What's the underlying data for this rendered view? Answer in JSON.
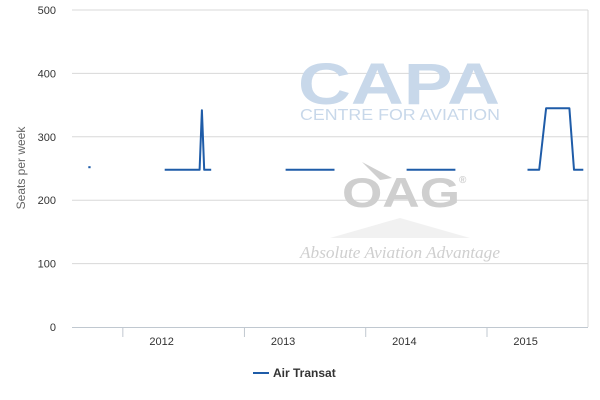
{
  "chart_data": {
    "type": "line",
    "title": "",
    "xlabel": "",
    "ylabel": "Seats per week",
    "ylim": [
      0,
      500
    ],
    "yticks": [
      0,
      100,
      200,
      300,
      400,
      500
    ],
    "xlim": [
      "2011-08-01",
      "2015-11-01"
    ],
    "xticks": [
      {
        "label": "2012",
        "date": "2012-01-01"
      },
      {
        "label": "2013",
        "date": "2013-01-01"
      },
      {
        "label": "2014",
        "date": "2014-01-01"
      },
      {
        "label": "2015",
        "date": "2015-01-01"
      }
    ],
    "grid": true,
    "legend_position": "bottom-center",
    "series": [
      {
        "name": "Air Transat",
        "color": "#1f5ca8",
        "segments": [
          [
            [
              "2011-09-19",
              252
            ],
            [
              "2011-09-26",
              252
            ]
          ],
          [
            [
              "2012-05-06",
              248
            ],
            [
              "2012-08-19",
              248
            ],
            [
              "2012-08-26",
              342
            ],
            [
              "2012-09-02",
              248
            ],
            [
              "2012-09-23",
              248
            ]
          ],
          [
            [
              "2013-05-05",
              248
            ],
            [
              "2013-09-29",
              248
            ]
          ],
          [
            [
              "2014-05-04",
              248
            ],
            [
              "2014-09-28",
              248
            ]
          ],
          [
            [
              "2015-05-03",
              248
            ],
            [
              "2015-06-07",
              248
            ],
            [
              "2015-06-28",
              345
            ],
            [
              "2015-07-05",
              345
            ],
            [
              "2015-09-06",
              345
            ],
            [
              "2015-09-20",
              248
            ],
            [
              "2015-10-18",
              248
            ]
          ]
        ]
      }
    ]
  },
  "watermarks": {
    "capa_logo": "CAPA",
    "capa_subtitle": "CENTRE FOR AVIATION",
    "oag_logo": "OAG",
    "oag_tagline": "Absolute Aviation Advantage",
    "oag_mark": "®"
  }
}
